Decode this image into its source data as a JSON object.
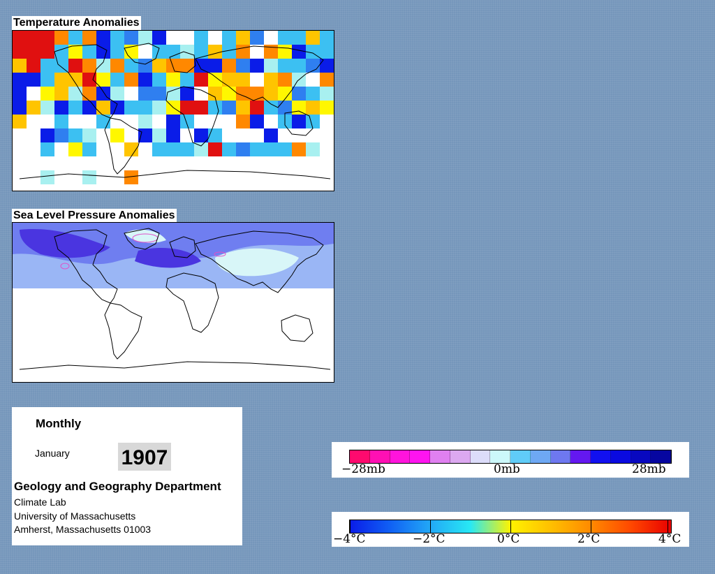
{
  "temperature_map": {
    "title": "Temperature Anomalies",
    "cell_colors": {
      "cold3": "#0a1ce8",
      "cold2": "#2f7ff0",
      "cold1": "#3cc0f2",
      "cool": "#a8f0f0",
      "warm1": "#fff700",
      "warm2": "#ffc400",
      "warm3": "#ff8800",
      "hot": "#e01010"
    }
  },
  "pressure_map": {
    "title": "Sea Level Pressure Anomalies",
    "band_colors": {
      "deep_low": "#4a35e0",
      "low": "#6f7ef0",
      "slight_low": "#9ab6f5",
      "near_zero": "#d8f6f8",
      "high_contour": "#e050c8"
    }
  },
  "info": {
    "period": "Monthly",
    "month": "January",
    "year": "1907",
    "department": "Geology and Geography Department",
    "address_lines": [
      "Climate Lab",
      "University of Massachusetts",
      "Amherst, Massachusetts 01003"
    ]
  },
  "pressure_legend": {
    "labels": [
      "−28mb",
      "0mb",
      "28mb"
    ],
    "colors": [
      "#ff0a6e",
      "#ff10b4",
      "#ff14dc",
      "#ff14f0",
      "#e080f0",
      "#dca8f0",
      "#dcdcfa",
      "#ccf8fa",
      "#60ccf8",
      "#6ea8f4",
      "#6e78f0",
      "#6418f0",
      "#1210f0",
      "#0a0ae0",
      "#0808c0",
      "#0606a0"
    ]
  },
  "temperature_legend": {
    "labels": [
      "−4°C",
      "−2°C",
      "0°C",
      "2°C",
      "4°C"
    ],
    "gradient": [
      "#0a1ce8",
      "#1060f4",
      "#22a8f6",
      "#28e8f4",
      "#fff300",
      "#ffc000",
      "#ff8a00",
      "#ff4800",
      "#e80000"
    ]
  }
}
